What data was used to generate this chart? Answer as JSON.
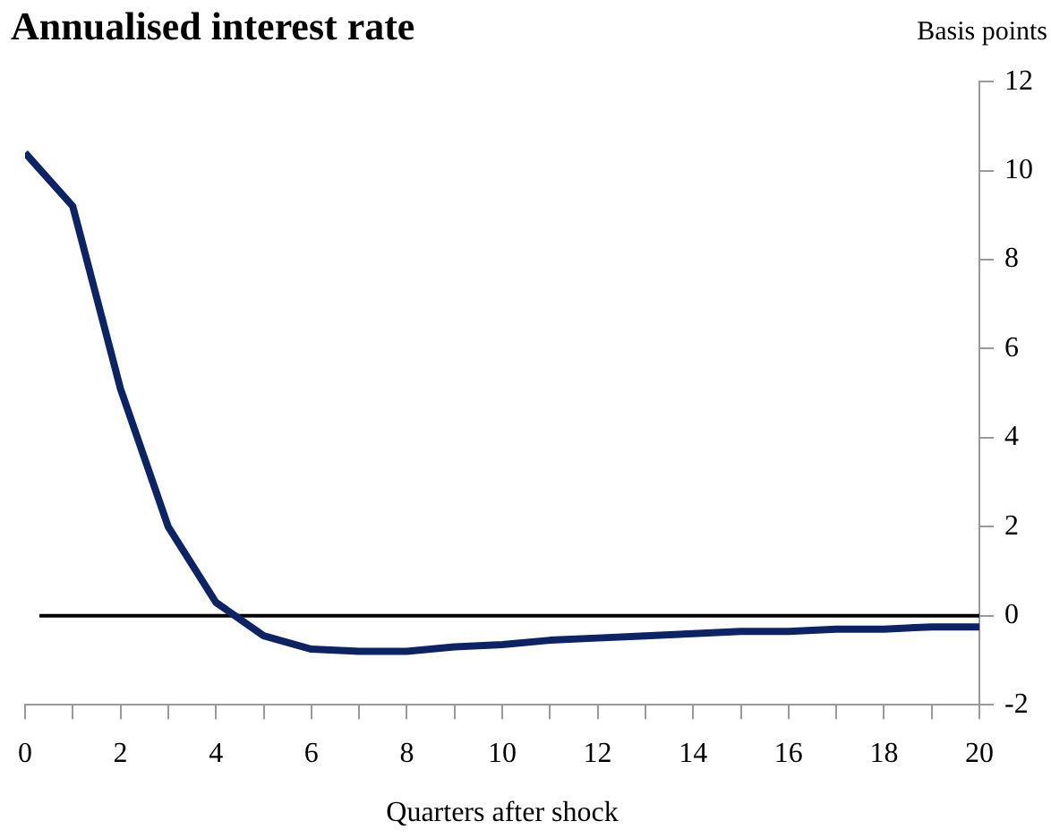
{
  "chart_data": {
    "type": "line",
    "title": "Annualised interest rate",
    "xlabel": "Quarters after shock",
    "ylabel": "Basis points",
    "x": [
      0,
      1,
      2,
      3,
      4,
      5,
      6,
      7,
      8,
      9,
      10,
      11,
      12,
      13,
      14,
      15,
      16,
      17,
      18,
      19,
      20
    ],
    "series": [
      {
        "color": "#0c2366",
        "values": [
          10.4,
          9.2,
          5.1,
          2.0,
          0.3,
          -0.45,
          -0.75,
          -0.8,
          -0.8,
          -0.7,
          -0.65,
          -0.55,
          -0.5,
          -0.45,
          -0.4,
          -0.35,
          -0.35,
          -0.3,
          -0.3,
          -0.25,
          -0.25
        ]
      }
    ],
    "xlim": [
      0,
      20
    ],
    "xticks": [
      0,
      {
        "value": 1,
        "label": null
      },
      2,
      {
        "value": 3,
        "label": null
      },
      4,
      {
        "value": 5,
        "label": null
      },
      6,
      {
        "value": 7,
        "label": null
      },
      8,
      {
        "value": 9,
        "label": null
      },
      10,
      {
        "value": 11,
        "label": null
      },
      12,
      {
        "value": 13,
        "label": null
      },
      14,
      {
        "value": 15,
        "label": null
      },
      16,
      {
        "value": 17,
        "label": null
      },
      18,
      {
        "value": 19,
        "label": null
      },
      20
    ],
    "ylim": [
      -2,
      12
    ],
    "yticks": [
      -2,
      0,
      2,
      4,
      6,
      8,
      10,
      12
    ],
    "ref_lines": [
      {
        "axis": "y",
        "value": 0,
        "color": "#000000"
      }
    ],
    "grid": false,
    "legend": false,
    "marker": "none",
    "line_style": "solid"
  }
}
